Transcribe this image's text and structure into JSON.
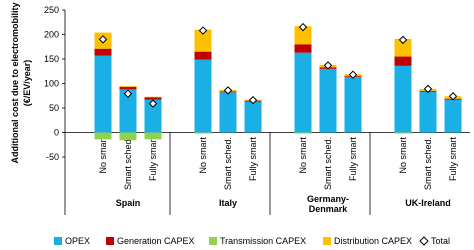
{
  "chart_data": {
    "type": "bar",
    "stacked": true,
    "y_label": [
      "Additional cost due to electromobility",
      "(€/EV/year)"
    ],
    "groups": [
      "Spain",
      "Italy",
      "Germany-Denmark",
      "UK-Ireland"
    ],
    "categories": [
      "No smart",
      "Smart sched.",
      "Fully smart",
      "No smart",
      "Smart sched.",
      "Fully smart",
      "No smart",
      "Smart sched.",
      "Fully smart",
      "No smart",
      "Smart sched.",
      "Fully smart"
    ],
    "series": [
      {
        "name": "OPEX",
        "color": "#1ab0e6",
        "values": [
          157,
          88,
          67,
          149,
          82,
          63,
          163,
          130,
          113,
          136,
          83,
          67
        ]
      },
      {
        "name": "Generation CAPEX",
        "color": "#c00000",
        "values": [
          14,
          5,
          5,
          16,
          2,
          2,
          17,
          3,
          2,
          19,
          2,
          2
        ]
      },
      {
        "name": "Transmission CAPEX",
        "color": "#92d050",
        "values": [
          -14,
          -16,
          -14,
          -2,
          0,
          0,
          -2,
          0,
          0,
          -2,
          0,
          0
        ]
      },
      {
        "name": "Distribution CAPEX",
        "color": "#ffc000",
        "values": [
          33,
          2,
          1,
          45,
          3,
          2,
          37,
          5,
          4,
          36,
          4,
          5
        ]
      },
      {
        "name": "Total",
        "color": "#ffffff",
        "marker": "diamond",
        "values": [
          190,
          79,
          59,
          208,
          86,
          66,
          215,
          137,
          118,
          189,
          89,
          74
        ]
      }
    ],
    "ylim": [
      -50,
      250
    ],
    "yticks": [
      -50,
      0,
      50,
      100,
      150,
      200,
      250
    ],
    "grid": false
  }
}
